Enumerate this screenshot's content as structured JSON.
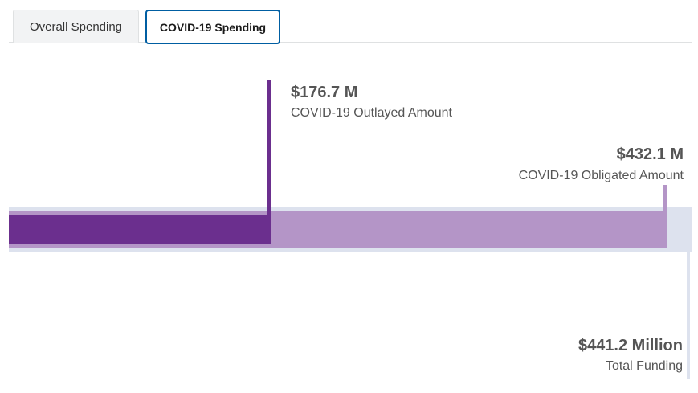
{
  "tabs": [
    {
      "label": "Overall Spending",
      "active": false
    },
    {
      "label": "COVID-19 Spending",
      "active": true
    }
  ],
  "chart_data": {
    "type": "bar",
    "total": {
      "value": 441.2,
      "amount_label": "$441.2 Million",
      "label": "Total Funding"
    },
    "obligated": {
      "value": 432.1,
      "amount_label": "$432.1 M",
      "label": "COVID-19 Obligated Amount"
    },
    "outlayed": {
      "value": 176.7,
      "amount_label": "$176.7 M",
      "label": "COVID-19 Outlayed Amount"
    }
  },
  "colors": {
    "outlayed": "#6b2f8e",
    "obligated": "#b495c7",
    "total": "#dde2ee",
    "active_tab_border": "#005ea2"
  }
}
